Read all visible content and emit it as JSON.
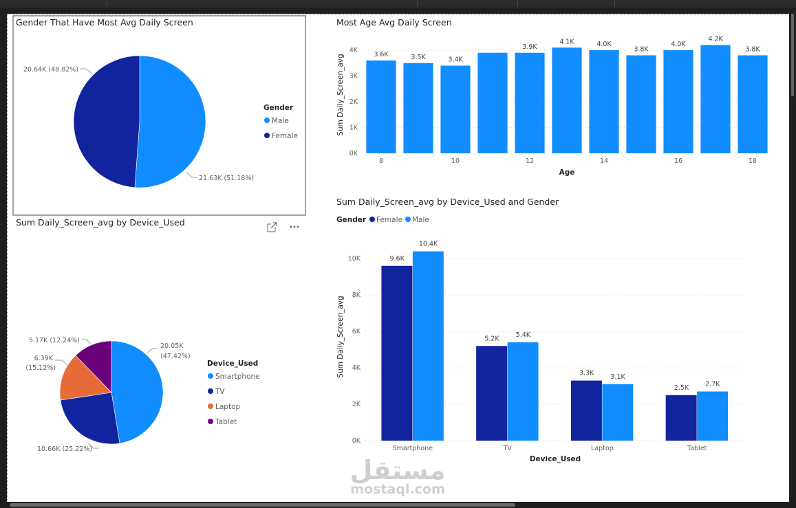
{
  "colors": {
    "male": "#118DFF",
    "female": "#12239E",
    "smartphone": "#118DFF",
    "tv": "#12239E",
    "laptop": "#E66C37",
    "tablet": "#6B007B",
    "bar": "#118DFF",
    "grid": "#d9d9d9"
  },
  "watermark": {
    "arabic": "مستقل",
    "latin": "mostaql.com"
  },
  "chart_data": [
    {
      "id": "gender",
      "type": "pie",
      "title": "Gender That Have Most Avg Daily Screen",
      "legend_title": "Gender",
      "legend_placement": "right",
      "slices": [
        {
          "name": "Male",
          "value": 21.63,
          "label": "21.63K (51.18%)",
          "colorKey": "male"
        },
        {
          "name": "Female",
          "value": 20.64,
          "label": "20.64K (48.82%)",
          "colorKey": "female"
        }
      ]
    },
    {
      "id": "age",
      "type": "bar",
      "title": "Most Age Avg Daily Screen",
      "xlabel": "Age",
      "ylabel": "Sum Daily_Screen_avg",
      "x": [
        8,
        9,
        10,
        11,
        12,
        13,
        14,
        15,
        16,
        17,
        18
      ],
      "values": [
        3.6,
        3.5,
        3.4,
        3.9,
        3.9,
        4.1,
        4.0,
        3.8,
        4.0,
        4.2,
        3.8
      ],
      "data_labels": [
        "3.6K",
        "3.5K",
        "3.4K",
        "",
        "3.9K",
        "4.1K",
        "4.0K",
        "3.8K",
        "4.0K",
        "4.2K",
        "3.8K"
      ],
      "xticks": [
        "8",
        "10",
        "12",
        "14",
        "16",
        "18"
      ],
      "xtick_values": [
        8,
        10,
        12,
        14,
        16,
        18
      ],
      "yticks": [
        "0K",
        "1K",
        "2K",
        "3K",
        "4K"
      ],
      "ytick_values": [
        0,
        1,
        2,
        3,
        4
      ],
      "ylim": [
        0,
        4.4
      ]
    },
    {
      "id": "device",
      "type": "pie",
      "title": "Sum Daily_Screen_avg by Device_Used",
      "legend_title": "Device_Used",
      "legend_placement": "right",
      "slices": [
        {
          "name": "Smartphone",
          "value": 20.05,
          "label1": "20.05K",
          "label2": "(47.42%)",
          "colorKey": "smartphone"
        },
        {
          "name": "TV",
          "value": 10.66,
          "label1": "10.66K (25.22%)",
          "label2": "",
          "colorKey": "tv"
        },
        {
          "name": "Laptop",
          "value": 6.39,
          "label1": "6.39K",
          "label2": "(15.12%)",
          "colorKey": "laptop"
        },
        {
          "name": "Tablet",
          "value": 5.17,
          "label1": "5.17K (12.24%)",
          "label2": "",
          "colorKey": "tablet"
        }
      ]
    },
    {
      "id": "deviceGender",
      "type": "bar",
      "title": "Sum Daily_Screen_avg by Device_Used and Gender",
      "xlabel": "Device_Used",
      "ylabel": "Sum Daily_Screen_avg",
      "legend_title": "Gender",
      "legend_placement": "top-left",
      "categories": [
        "Smartphone",
        "TV",
        "Laptop",
        "Tablet"
      ],
      "series": [
        {
          "name": "Female",
          "colorKey": "female",
          "values": [
            9.6,
            5.2,
            3.3,
            2.5
          ],
          "labels": [
            "9.6K",
            "5.2K",
            "3.3K",
            "2.5K"
          ]
        },
        {
          "name": "Male",
          "colorKey": "male",
          "values": [
            10.4,
            5.4,
            3.1,
            2.7
          ],
          "labels": [
            "10.4K",
            "5.4K",
            "3.1K",
            "2.7K"
          ]
        }
      ],
      "yticks": [
        "0K",
        "2K",
        "4K",
        "6K",
        "8K",
        "10K"
      ],
      "ytick_values": [
        0,
        2,
        4,
        6,
        8,
        10
      ],
      "ylim": [
        0,
        10.8
      ]
    }
  ]
}
